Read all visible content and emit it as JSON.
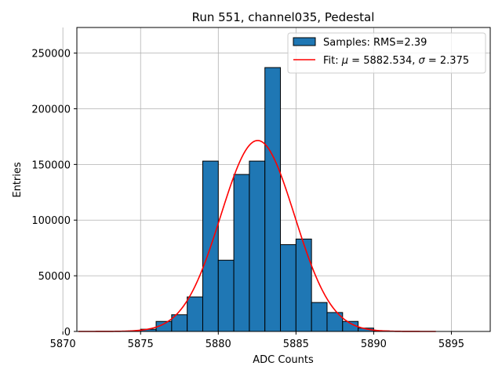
{
  "chart_data": {
    "type": "bar",
    "title": "Run 551, channel035, Pedestal",
    "xlabel": "ADC Counts",
    "ylabel": "Entries",
    "xlim": [
      5870.9,
      5897.5
    ],
    "ylim": [
      0,
      273000
    ],
    "xticks": [
      5870,
      5875,
      5880,
      5885,
      5890,
      5895
    ],
    "yticks": [
      0,
      50000,
      100000,
      150000,
      200000,
      250000
    ],
    "grid": true,
    "legend_position": "top-right",
    "histogram": {
      "name": "Samples: RMS=2.39",
      "color": "#1f77b4",
      "bin_width": 1,
      "bins": [
        {
          "left": 5875,
          "count": 2000
        },
        {
          "left": 5876,
          "count": 9000
        },
        {
          "left": 5877,
          "count": 15000
        },
        {
          "left": 5878,
          "count": 31000
        },
        {
          "left": 5879,
          "count": 153000
        },
        {
          "left": 5880,
          "count": 64000
        },
        {
          "left": 5881,
          "count": 141000
        },
        {
          "left": 5882,
          "count": 153000
        },
        {
          "left": 5883,
          "count": 237000
        },
        {
          "left": 5884,
          "count": 78000
        },
        {
          "left": 5885,
          "count": 83000
        },
        {
          "left": 5886,
          "count": 26000
        },
        {
          "left": 5887,
          "count": 17000
        },
        {
          "left": 5888,
          "count": 9000
        },
        {
          "left": 5889,
          "count": 3000
        },
        {
          "left": 5890,
          "count": 500
        }
      ]
    },
    "fit": {
      "name": "Fit: μ = 5882.534, σ = 2.375",
      "name_prefix": "Fit: ",
      "name_mu": "μ",
      "name_mid": " = 5882.534, ",
      "name_sigma": "σ",
      "name_suffix": " = 2.375",
      "color": "#ff0000",
      "type": "gaussian",
      "mu": 5882.534,
      "sigma": 2.375,
      "amplitude": 171500,
      "x_range": [
        5871,
        5894
      ]
    }
  }
}
